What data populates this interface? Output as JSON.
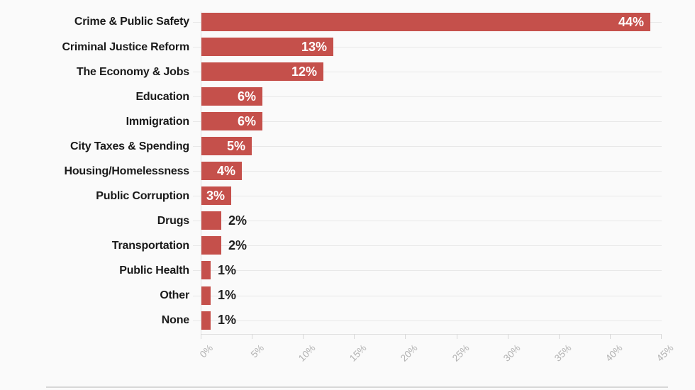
{
  "chart_data": {
    "type": "bar",
    "orientation": "horizontal",
    "title": "",
    "xlabel": "",
    "ylabel": "",
    "categories": [
      "Crime & Public Safety",
      "Criminal Justice Reform",
      "The Economy & Jobs",
      "Education",
      "Immigration",
      "City Taxes & Spending",
      "Housing/Homelessness",
      "Public Corruption",
      "Drugs",
      "Transportation",
      "Public Health",
      "Other",
      "None"
    ],
    "values": [
      44,
      13,
      12,
      6,
      6,
      5,
      4,
      3,
      2,
      2,
      1,
      1,
      1
    ],
    "value_labels": [
      "44%",
      "13%",
      "12%",
      "6%",
      "6%",
      "5%",
      "4%",
      "3%",
      "2%",
      "2%",
      "1%",
      "1%",
      "1%"
    ],
    "x_ticks": [
      "0%",
      "5%",
      "10%",
      "15%",
      "20%",
      "25%",
      "30%",
      "35%",
      "40%",
      "45%"
    ],
    "x_tick_values": [
      0,
      5,
      10,
      15,
      20,
      25,
      30,
      35,
      40,
      45
    ],
    "xlim": [
      0,
      45
    ],
    "grid": "row-lines",
    "legend": "none",
    "colors": {
      "bar": "#c5504b",
      "value_label_inside": "#ffffff",
      "value_label_outside": "#222222",
      "category_label": "#1a1a1a",
      "tick_label": "#b2b2b2",
      "grid_line": "#e8e8e8",
      "background": "#fafafa"
    },
    "value_label_inside_min": 3
  }
}
